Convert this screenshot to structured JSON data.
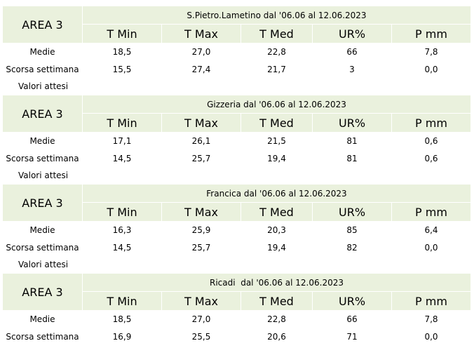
{
  "columns": [
    "T Min",
    "T Max",
    "T Med",
    "UR%",
    "P mm"
  ],
  "blocks": [
    {
      "area": "AREA 3",
      "title": "S.Pietro.Lametino dal '06.06 al 12.06.2023",
      "rows": [
        {
          "label": "Medie",
          "values": [
            "18,5",
            "27,0",
            "22,8",
            "66",
            "7,8"
          ]
        },
        {
          "label": "Scorsa settimana",
          "values": [
            "15,5",
            "27,4",
            "21,7",
            "3",
            "0,0"
          ]
        }
      ],
      "footer": "Valori attesi"
    },
    {
      "area": "AREA 3",
      "title": "Gizzeria dal '06.06 al 12.06.2023",
      "rows": [
        {
          "label": "Medie",
          "values": [
            "17,1",
            "26,1",
            "21,5",
            "81",
            "0,6"
          ]
        },
        {
          "label": "Scorsa settimana",
          "values": [
            "14,5",
            "25,7",
            "19,4",
            "81",
            "0,6"
          ]
        }
      ],
      "footer": "Valori attesi"
    },
    {
      "area": "AREA 3",
      "title": "Francica dal '06.06 al 12.06.2023",
      "rows": [
        {
          "label": "Medie",
          "values": [
            "16,3",
            "25,9",
            "20,3",
            "85",
            "6,4"
          ]
        },
        {
          "label": "Scorsa settimana",
          "values": [
            "14,5",
            "25,7",
            "19,4",
            "82",
            "0,0"
          ]
        }
      ],
      "footer": "Valori attesi"
    },
    {
      "area": "AREA 3",
      "title": "Ricadi  dal '06.06 al 12.06.2023",
      "rows": [
        {
          "label": "Medie",
          "values": [
            "18,5",
            "27,0",
            "22,8",
            "66",
            "7,8"
          ]
        },
        {
          "label": "Scorsa settimana",
          "values": [
            "16,9",
            "25,5",
            "20,6",
            "71",
            "0,0"
          ]
        }
      ],
      "footer": ""
    }
  ]
}
